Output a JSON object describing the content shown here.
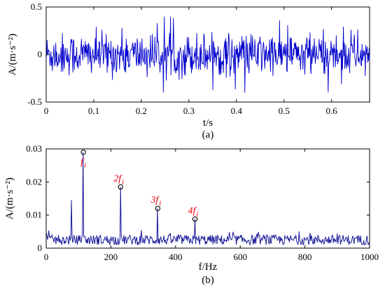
{
  "chart_data": [
    {
      "type": "line",
      "panel_caption": "(a)",
      "xlabel": "t/s",
      "ylabel": "A/(m·s⁻²)",
      "xlim": [
        0,
        0.68
      ],
      "ylim": [
        -0.5,
        0.5
      ],
      "xticks": [
        "0",
        "0.1",
        "0.2",
        "0.3",
        "0.4",
        "0.5",
        "0.6"
      ],
      "yticks": [
        "0.5",
        "0",
        "-0.5"
      ],
      "color": "#0000cc",
      "series": [
        {
          "description_of_values": "broadband random vibration signal, dense noise roughly between -0.3 and 0.3 with occasional peaks near ±0.4",
          "sample_count": 680,
          "amplitude_envelope": [
            -0.4,
            0.4
          ]
        }
      ]
    },
    {
      "type": "line",
      "panel_caption": "(b)",
      "xlabel": "f/Hz",
      "ylabel": "A/(m·s⁻²)",
      "xlim": [
        0,
        1000
      ],
      "ylim": [
        0,
        0.03
      ],
      "xticks": [
        "0",
        "200",
        "400",
        "600",
        "800",
        "1000"
      ],
      "yticks": [
        "0.03",
        "0.02",
        "0.01",
        "0"
      ],
      "color": "#1a1a9a",
      "peaks": [
        {
          "x": 115,
          "y": 0.029,
          "label_main": "f",
          "label_sub": "i"
        },
        {
          "x": 230,
          "y": 0.0185,
          "label_main": "2f",
          "label_sub": "i"
        },
        {
          "x": 345,
          "y": 0.012,
          "label_main": "3f",
          "label_sub": "i"
        },
        {
          "x": 460,
          "y": 0.0088,
          "label_main": "4f",
          "label_sub": "i"
        }
      ],
      "minor_peaks": [
        {
          "x": 78,
          "y": 0.0145
        }
      ],
      "noise_floor": [
        0.001,
        0.004
      ]
    }
  ]
}
